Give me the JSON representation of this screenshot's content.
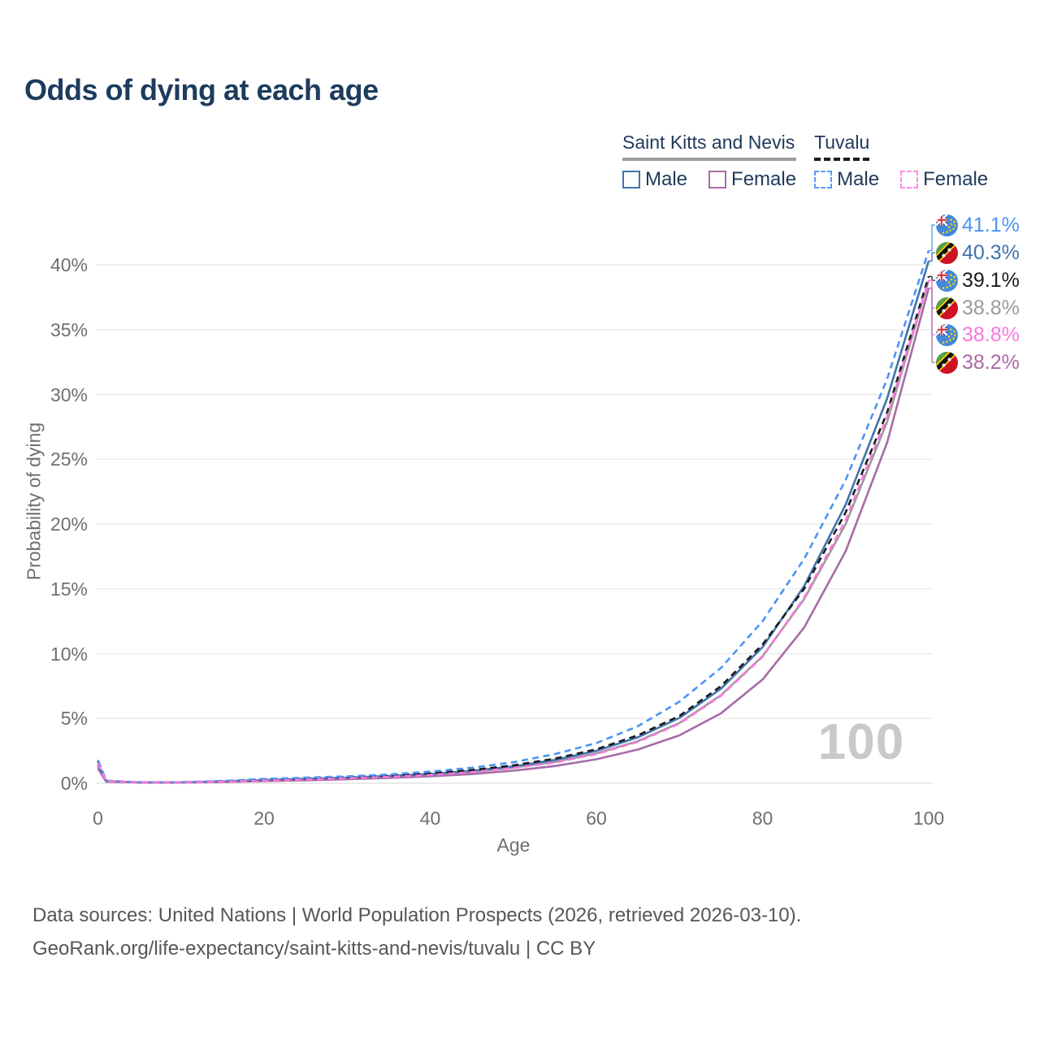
{
  "title": "Odds of dying at each age",
  "watermark": "100",
  "legend": {
    "groups": [
      {
        "label": "Saint Kitts and Nevis",
        "line_style": "solid",
        "underline_color": "#9c9c9c",
        "items": [
          {
            "label": "Male",
            "color": "#4272ae",
            "dashed": false
          },
          {
            "label": "Female",
            "color": "#a76ba7",
            "dashed": false
          }
        ]
      },
      {
        "label": "Tuvalu",
        "line_style": "dashed",
        "underline_color": "#1c1c1c",
        "items": [
          {
            "label": "Male",
            "color": "#5b9bf8",
            "dashed": true
          },
          {
            "label": "Female",
            "color": "#ff8ae8",
            "dashed": true
          }
        ]
      }
    ]
  },
  "annotations": [
    {
      "flag": "tuvalu",
      "country": "Tuvalu",
      "value_label": "41.1%",
      "color": "#4b94f5"
    },
    {
      "flag": "saint-kitts-and-nevis",
      "country": "Saint Kitts and Nevis",
      "value_label": "40.3%",
      "color": "#4272ae"
    },
    {
      "flag": "tuvalu",
      "country": "Tuvalu",
      "value_label": "39.1%",
      "color": "#1c1c1c"
    },
    {
      "flag": "saint-kitts-and-nevis",
      "country": "Saint Kitts and Nevis",
      "value_label": "38.8%",
      "color": "#9b9b9b"
    },
    {
      "flag": "tuvalu",
      "country": "Tuvalu",
      "value_label": "38.8%",
      "color": "#fb76df"
    },
    {
      "flag": "saint-kitts-and-nevis",
      "country": "Saint Kitts and Nevis",
      "value_label": "38.2%",
      "color": "#a76ba7"
    }
  ],
  "footer": {
    "line1": "Data sources: United Nations | World Population Prospects (2026, retrieved 2026-03-10).",
    "line2": "GeoRank.org/life-expectancy/saint-kitts-and-nevis/tuvalu | CC BY"
  },
  "chart_data": {
    "type": "line",
    "title": "Odds of dying at each age",
    "xlabel": "Age",
    "ylabel": "Probability of dying",
    "xlim": [
      0,
      100
    ],
    "ylim_pct": [
      0,
      42
    ],
    "x_ticks": [
      0,
      20,
      40,
      60,
      80,
      100
    ],
    "y_ticks_pct": [
      0,
      5,
      10,
      15,
      20,
      25,
      30,
      35,
      40
    ],
    "grid": "horizontal",
    "legend_position": "top-right",
    "ages": [
      0,
      1,
      5,
      10,
      15,
      20,
      25,
      30,
      35,
      40,
      45,
      50,
      55,
      60,
      65,
      70,
      75,
      80,
      85,
      90,
      95,
      100
    ],
    "series": [
      {
        "name": "Tuvalu — Male",
        "country": "Tuvalu",
        "group": "Male",
        "style": "dashed",
        "color": "#4b94f5",
        "end_label": "41.1%",
        "values_pct": [
          1.8,
          0.2,
          0.08,
          0.08,
          0.18,
          0.33,
          0.43,
          0.53,
          0.68,
          0.9,
          1.2,
          1.62,
          2.25,
          3.1,
          4.4,
          6.3,
          8.9,
          12.5,
          17.3,
          23.4,
          31.2,
          41.1
        ]
      },
      {
        "name": "Saint Kitts and Nevis — Male",
        "country": "Saint Kitts and Nevis",
        "group": "Male",
        "style": "solid",
        "color": "#4272ae",
        "end_label": "40.3%",
        "values_pct": [
          1.45,
          0.16,
          0.07,
          0.07,
          0.14,
          0.25,
          0.34,
          0.44,
          0.56,
          0.72,
          0.96,
          1.3,
          1.8,
          2.5,
          3.55,
          5.05,
          7.3,
          10.5,
          15.2,
          21.5,
          29.7,
          40.3
        ]
      },
      {
        "name": "Tuvalu — Combined",
        "country": "Tuvalu",
        "group": "Combined",
        "style": "dashed",
        "color": "#1c1c1c",
        "end_label": "39.1%",
        "values_pct": [
          1.7,
          0.18,
          0.075,
          0.075,
          0.15,
          0.27,
          0.36,
          0.46,
          0.58,
          0.76,
          1.02,
          1.38,
          1.9,
          2.62,
          3.7,
          5.2,
          7.5,
          10.7,
          15.0,
          20.9,
          28.6,
          39.1
        ]
      },
      {
        "name": "Saint Kitts and Nevis — Combined",
        "country": "Saint Kitts and Nevis",
        "group": "Combined",
        "style": "solid",
        "color": "#9b9b9b",
        "end_label": "38.8%",
        "values_pct": [
          1.3,
          0.14,
          0.065,
          0.065,
          0.13,
          0.22,
          0.3,
          0.4,
          0.51,
          0.66,
          0.88,
          1.2,
          1.65,
          2.3,
          3.25,
          4.65,
          6.8,
          9.8,
          14.2,
          20.0,
          27.9,
          38.8
        ]
      },
      {
        "name": "Tuvalu — Female",
        "country": "Tuvalu",
        "group": "Female",
        "style": "dashed",
        "color": "#fb76df",
        "end_label": "38.8%",
        "values_pct": [
          1.55,
          0.17,
          0.07,
          0.07,
          0.12,
          0.2,
          0.28,
          0.38,
          0.49,
          0.64,
          0.86,
          1.17,
          1.6,
          2.25,
          3.2,
          4.6,
          6.75,
          9.75,
          14.3,
          20.3,
          28.3,
          38.8
        ]
      },
      {
        "name": "Saint Kitts and Nevis — Female",
        "country": "Saint Kitts and Nevis",
        "group": "Female",
        "style": "solid",
        "color": "#a76ba7",
        "end_label": "38.2%",
        "values_pct": [
          1.15,
          0.12,
          0.055,
          0.055,
          0.1,
          0.17,
          0.23,
          0.31,
          0.41,
          0.53,
          0.71,
          0.97,
          1.33,
          1.85,
          2.6,
          3.7,
          5.4,
          8.0,
          12.0,
          17.9,
          26.3,
          38.2
        ]
      }
    ]
  }
}
